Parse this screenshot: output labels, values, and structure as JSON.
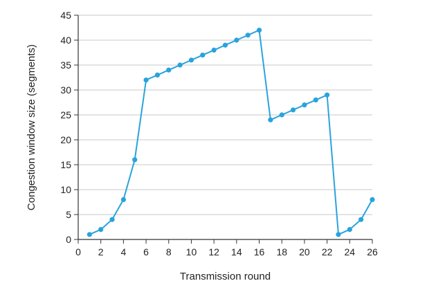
{
  "chart_data": {
    "type": "line",
    "title": "",
    "xlabel": "Transmission round",
    "ylabel": "Congestion window size (segments)",
    "xlim": [
      0,
      26
    ],
    "ylim": [
      0,
      45
    ],
    "xticks": [
      0,
      2,
      4,
      6,
      8,
      10,
      12,
      14,
      16,
      18,
      20,
      22,
      24,
      26
    ],
    "yticks": [
      0,
      5,
      10,
      15,
      20,
      25,
      30,
      35,
      40,
      45
    ],
    "grid": "horizontal",
    "legend": "none",
    "series": [
      {
        "x": [
          1,
          2,
          3,
          4,
          5,
          6,
          7,
          8,
          9,
          10,
          11,
          12,
          13,
          14,
          15,
          16,
          17,
          18,
          19,
          20,
          21,
          22,
          23,
          24,
          25,
          26
        ],
        "y": [
          1,
          2,
          4,
          8,
          16,
          32,
          33,
          34,
          35,
          36,
          37,
          38,
          39,
          40,
          41,
          42,
          24,
          25,
          26,
          27,
          28,
          29,
          1,
          2,
          4,
          8
        ]
      }
    ],
    "colors": {
      "line": "#29a3dc",
      "marker": "#29a3dc",
      "grid": "#c8c8c8",
      "axis": "#333333"
    }
  }
}
